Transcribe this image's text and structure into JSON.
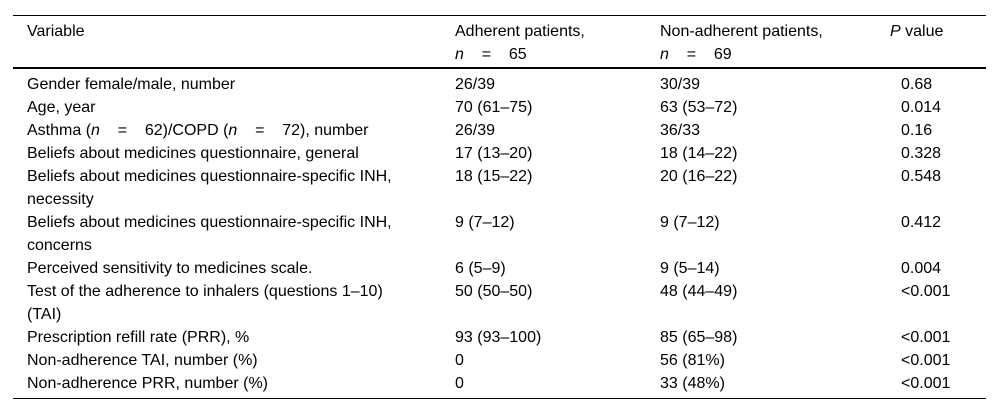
{
  "table": {
    "text_color": "#000000",
    "rule_color": "#000000",
    "background": "#ffffff",
    "header": {
      "variable": [
        {
          "t": "Variable",
          "i": false
        }
      ],
      "adherent": [
        {
          "t": "Adherent patients,\n",
          "i": false
        },
        {
          "t": "n",
          "i": true
        },
        {
          "t": "    =    65",
          "i": false
        }
      ],
      "nonadherent": [
        {
          "t": "Non-adherent patients,\n",
          "i": false
        },
        {
          "t": "n",
          "i": true
        },
        {
          "t": "    =    69",
          "i": false
        }
      ],
      "pvalue": [
        {
          "t": "P",
          "i": true
        },
        {
          "t": " value",
          "i": false
        }
      ]
    },
    "rows": [
      {
        "variable": [
          {
            "t": "Gender female/male, number",
            "i": false
          }
        ],
        "adherent": "26/39",
        "nonadherent": "30/39",
        "p": "0.68"
      },
      {
        "variable": [
          {
            "t": "Age, year",
            "i": false
          }
        ],
        "adherent": "70 (61–75)",
        "nonadherent": "63 (53–72)",
        "p": "0.014"
      },
      {
        "variable": [
          {
            "t": "Asthma (",
            "i": false
          },
          {
            "t": "n",
            "i": true
          },
          {
            "t": "    =    62)/COPD (",
            "i": false
          },
          {
            "t": "n",
            "i": true
          },
          {
            "t": "    =    72), number",
            "i": false
          }
        ],
        "adherent": "26/39",
        "nonadherent": "36/33",
        "p": "0.16"
      },
      {
        "variable": [
          {
            "t": "Beliefs about medicines questionnaire, general",
            "i": false
          }
        ],
        "adherent": "17 (13–20)",
        "nonadherent": "18 (14–22)",
        "p": "0.328"
      },
      {
        "variable": [
          {
            "t": "Beliefs about medicines questionnaire-specific INH,\nnecessity",
            "i": false
          }
        ],
        "adherent": "18 (15–22)",
        "nonadherent": "20 (16–22)",
        "p": "0.548"
      },
      {
        "variable": [
          {
            "t": "Beliefs about medicines questionnaire-specific INH,\nconcerns",
            "i": false
          }
        ],
        "adherent": "9 (7–12)",
        "nonadherent": "9 (7–12)",
        "p": "0.412"
      },
      {
        "variable": [
          {
            "t": "Perceived sensitivity to medicines scale.",
            "i": false
          }
        ],
        "adherent": "6 (5–9)",
        "nonadherent": "9 (5–14)",
        "p": "0.004"
      },
      {
        "variable": [
          {
            "t": "Test of the adherence to inhalers (questions 1–10)\n(TAI)",
            "i": false
          }
        ],
        "adherent": "50 (50–50)",
        "nonadherent": "48 (44–49)",
        "p": "<0.001"
      },
      {
        "variable": [
          {
            "t": "Prescription refill rate (PRR), %",
            "i": false
          }
        ],
        "adherent": "93 (93–100)",
        "nonadherent": "85 (65–98)",
        "p": "<0.001"
      },
      {
        "variable": [
          {
            "t": "Non-adherence TAI, number (%)",
            "i": false
          }
        ],
        "adherent": "0",
        "nonadherent": "56 (81%)",
        "p": "<0.001"
      },
      {
        "variable": [
          {
            "t": "Non-adherence PRR, number (%)",
            "i": false
          }
        ],
        "adherent": "0",
        "nonadherent": "33 (48%)",
        "p": "<0.001"
      }
    ]
  }
}
